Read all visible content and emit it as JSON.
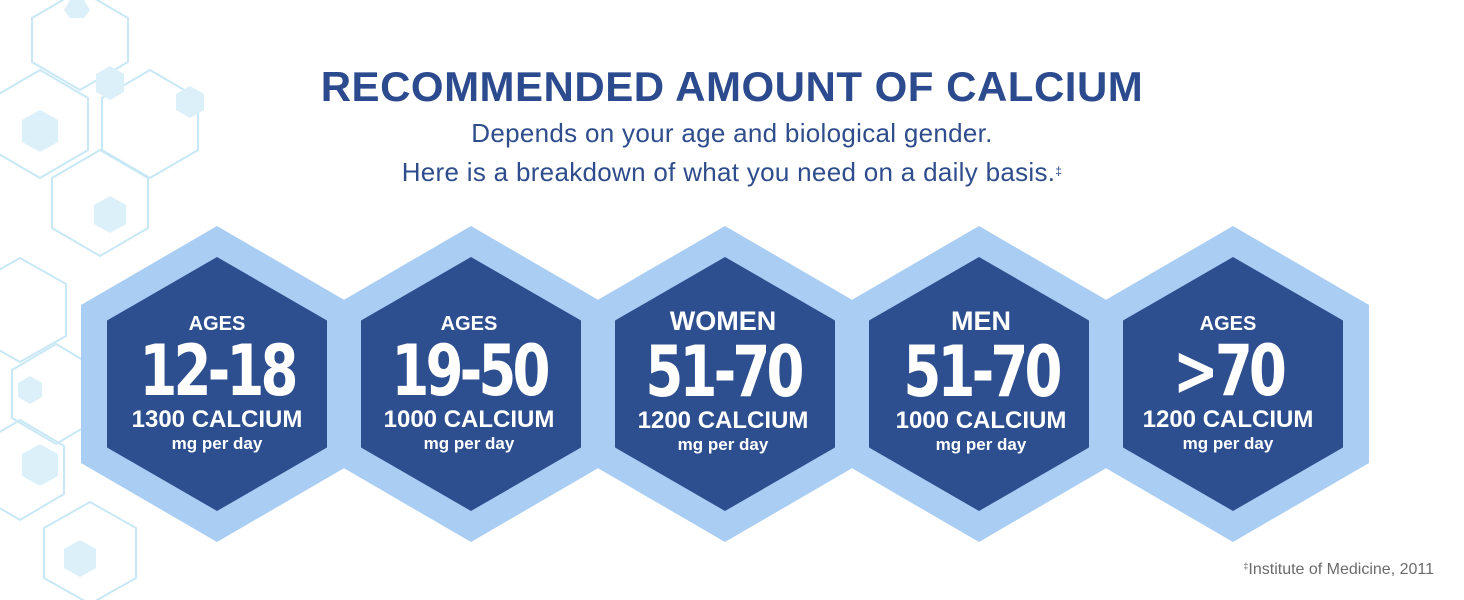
{
  "header": {
    "title": "RECOMMENDED AMOUNT OF CALCIUM",
    "subtitle_line1": "Depends on your age and biological gender.",
    "subtitle_line2": "Here is a breakdown of what you need on a daily basis.",
    "subtitle_mark": "‡"
  },
  "groups": [
    {
      "top": "AGES",
      "range": "12-18",
      "amount": "1300 CALCIUM",
      "unit": "mg per day"
    },
    {
      "top": "AGES",
      "range": "19-50",
      "amount": "1000 CALCIUM",
      "unit": "mg per day"
    },
    {
      "top": "WOMEN",
      "range": "51-70",
      "amount": "1200 CALCIUM",
      "unit": "mg per day"
    },
    {
      "top": "MEN",
      "range": "51-70",
      "amount": "1000 CALCIUM",
      "unit": "mg per day"
    },
    {
      "top": "AGES",
      "range": ">70",
      "amount": "1200 CALCIUM",
      "unit": "mg per day"
    }
  ],
  "footnote": {
    "mark": "‡",
    "text": "Institute of Medicine, 2011"
  },
  "colors": {
    "title": "#2c4b8e",
    "hex_fill": "#2e4f8f",
    "hex_border": "#a9cdf3",
    "bg_hex": "#c7e6f6"
  }
}
